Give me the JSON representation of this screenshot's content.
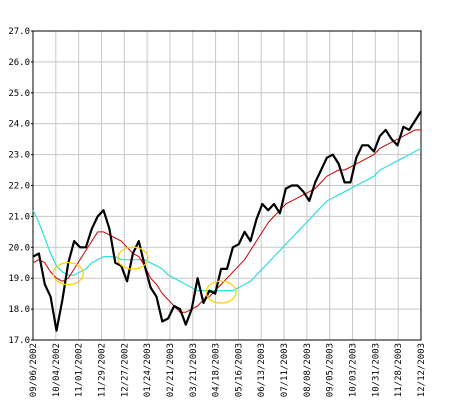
{
  "chart_data": {
    "type": "line",
    "title": "",
    "xlabel": "",
    "ylabel": "",
    "ylim": [
      17.0,
      27.0
    ],
    "y_ticks": [
      "27.0",
      "26.0",
      "25.0",
      "24.0",
      "23.0",
      "22.0",
      "21.0",
      "20.0",
      "19.0",
      "18.0",
      "17.0"
    ],
    "x_ticks": [
      "09/06/2002",
      "10/04/2002",
      "11/01/2002",
      "11/29/2002",
      "12/27/2002",
      "01/24/2003",
      "02/21/2003",
      "03/21/2003",
      "04/18/2003",
      "05/16/2003",
      "06/13/2003",
      "07/11/2003",
      "08/08/2003",
      "09/05/2003",
      "10/03/2003",
      "10/31/2003",
      "11/28/2003",
      "12/12/2003"
    ],
    "grid": true,
    "legend": "none",
    "series": [
      {
        "color": "#000000",
        "values": [
          19.7,
          19.8,
          18.8,
          18.4,
          17.3,
          18.3,
          19.5,
          20.2,
          20.0,
          20.0,
          20.6,
          21.0,
          21.2,
          20.6,
          19.5,
          19.4,
          18.9,
          19.8,
          20.2,
          19.4,
          18.7,
          18.4,
          17.6,
          17.7,
          18.1,
          18.0,
          17.5,
          18.0,
          19.0,
          18.2,
          18.6,
          18.5,
          19.3,
          19.3,
          20.0,
          20.1,
          20.5,
          20.2,
          20.9,
          21.4,
          21.2,
          21.4,
          21.1,
          21.9,
          22.0,
          22.0,
          21.8,
          21.5,
          22.1,
          22.5,
          22.9,
          23.0,
          22.7,
          22.1,
          22.1,
          22.9,
          23.3,
          23.3,
          23.1,
          23.6,
          23.8,
          23.5,
          23.3,
          23.9,
          23.8,
          24.1,
          24.4
        ]
      },
      {
        "color": "#cc0000",
        "values": [
          19.5,
          19.6,
          19.5,
          19.2,
          19.0,
          18.9,
          19.0,
          19.3,
          19.6,
          19.9,
          20.2,
          20.5,
          20.5,
          20.4,
          20.3,
          20.2,
          20.0,
          19.8,
          19.7,
          19.4,
          19.0,
          18.8,
          18.5,
          18.3,
          18.1,
          17.9,
          17.9,
          18.0,
          18.1,
          18.3,
          18.4,
          18.6,
          18.8,
          19.0,
          19.2,
          19.4,
          19.6,
          19.9,
          20.2,
          20.5,
          20.8,
          21.0,
          21.2,
          21.4,
          21.5,
          21.6,
          21.7,
          21.8,
          21.9,
          22.1,
          22.3,
          22.4,
          22.5,
          22.5,
          22.6,
          22.7,
          22.8,
          22.9,
          23.0,
          23.2,
          23.3,
          23.4,
          23.5,
          23.6,
          23.7,
          23.8,
          23.8
        ]
      },
      {
        "color": "#33dddd",
        "values": [
          21.2,
          20.8,
          20.3,
          19.8,
          19.4,
          19.2,
          19.1,
          19.1,
          19.2,
          19.3,
          19.5,
          19.6,
          19.7,
          19.7,
          19.7,
          19.6,
          19.6,
          19.6,
          19.6,
          19.6,
          19.5,
          19.4,
          19.3,
          19.1,
          19.0,
          18.9,
          18.8,
          18.7,
          18.6,
          18.6,
          18.6,
          18.6,
          18.6,
          18.6,
          18.6,
          18.7,
          18.8,
          18.9,
          19.1,
          19.3,
          19.5,
          19.7,
          19.9,
          20.1,
          20.3,
          20.5,
          20.7,
          20.9,
          21.1,
          21.3,
          21.5,
          21.6,
          21.7,
          21.8,
          21.9,
          22.0,
          22.1,
          22.2,
          22.3,
          22.5,
          22.6,
          22.7,
          22.8,
          22.9,
          23.0,
          23.1,
          23.2
        ]
      }
    ],
    "annotations": [
      {
        "type": "ellipse",
        "color": "#ffcc00",
        "x_index": 6,
        "y": 19.15
      },
      {
        "type": "ellipse",
        "color": "#ffcc00",
        "x_index": 17,
        "y": 19.65
      },
      {
        "type": "ellipse",
        "color": "#ffcc00",
        "x_index": 32,
        "y": 18.55
      }
    ]
  }
}
